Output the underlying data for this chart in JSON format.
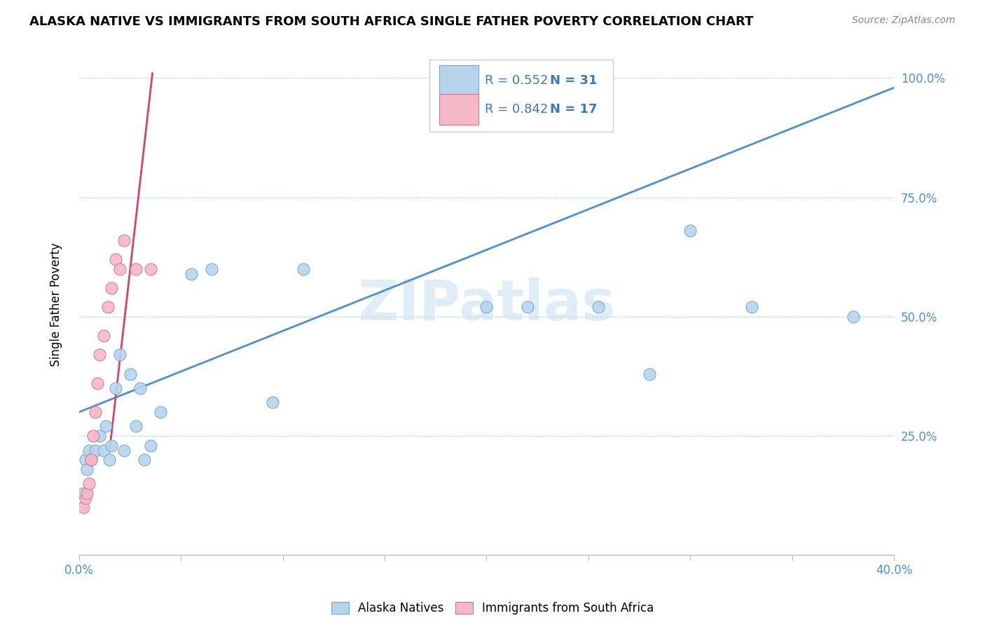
{
  "title": "ALASKA NATIVE VS IMMIGRANTS FROM SOUTH AFRICA SINGLE FATHER POVERTY CORRELATION CHART",
  "source": "Source: ZipAtlas.com",
  "ylabel_label": "Single Father Poverty",
  "xlim": [
    0.0,
    0.4
  ],
  "ylim": [
    0.0,
    1.05
  ],
  "blue_scatter_color": "#b8d4ed",
  "pink_scatter_color": "#f5b8c8",
  "blue_edge_color": "#6aaad4",
  "pink_edge_color": "#e07090",
  "blue_line_color": "#4a90d9",
  "pink_line_color": "#d94070",
  "legend_r1": "R = 0.552",
  "legend_n1": "N = 31",
  "legend_r2": "R = 0.842",
  "legend_n2": "N = 17",
  "legend_label1": "Alaska Natives",
  "legend_label2": "Immigrants from South Africa",
  "watermark": "ZIPatlas",
  "blue_intercept": 0.3,
  "blue_slope": 1.7,
  "pink_intercept": -0.5,
  "pink_slope": 28.0,
  "pink_line_x_start": 0.018,
  "pink_line_x_end": 0.037,
  "blue_points_x": [
    0.002,
    0.003,
    0.004,
    0.005,
    0.006,
    0.008,
    0.01,
    0.012,
    0.013,
    0.015,
    0.016,
    0.018,
    0.02,
    0.022,
    0.025,
    0.028,
    0.03,
    0.032,
    0.035,
    0.04,
    0.055,
    0.065,
    0.095,
    0.11,
    0.2,
    0.22,
    0.255,
    0.28,
    0.3,
    0.33,
    0.38
  ],
  "blue_points_y": [
    0.13,
    0.2,
    0.18,
    0.22,
    0.2,
    0.22,
    0.25,
    0.22,
    0.27,
    0.2,
    0.23,
    0.35,
    0.42,
    0.22,
    0.38,
    0.27,
    0.35,
    0.2,
    0.23,
    0.3,
    0.59,
    0.6,
    0.32,
    0.6,
    0.52,
    0.52,
    0.52,
    0.38,
    0.68,
    0.52,
    0.5
  ],
  "pink_points_x": [
    0.002,
    0.003,
    0.004,
    0.005,
    0.006,
    0.007,
    0.008,
    0.009,
    0.01,
    0.012,
    0.014,
    0.016,
    0.018,
    0.02,
    0.022,
    0.028,
    0.035
  ],
  "pink_points_y": [
    0.1,
    0.12,
    0.13,
    0.15,
    0.2,
    0.25,
    0.3,
    0.36,
    0.42,
    0.46,
    0.52,
    0.56,
    0.62,
    0.6,
    0.66,
    0.6,
    0.6
  ]
}
